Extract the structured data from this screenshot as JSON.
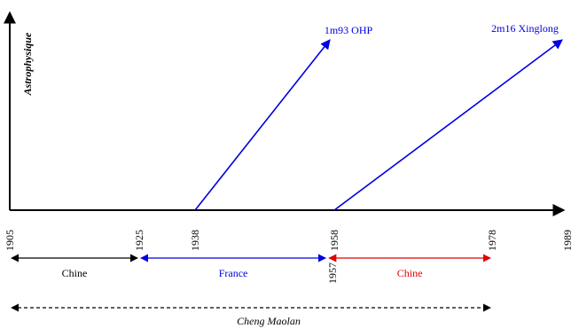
{
  "axes": {
    "y_label": "Astrophysique",
    "years": [
      {
        "year": "1905"
      },
      {
        "year": "1925"
      },
      {
        "year": "1938"
      },
      {
        "year": "1958"
      },
      {
        "year": "1978"
      },
      {
        "year": "1989"
      }
    ],
    "year_1957": "1957"
  },
  "telescopes": [
    {
      "label": "1m93 OHP",
      "from_year": 1938,
      "to_year": 1958,
      "color": "#0000e0"
    },
    {
      "label": "2m16 Xinglong",
      "from_year": 1958,
      "to_year": 1989,
      "color": "#0000e0"
    }
  ],
  "periods": [
    {
      "label": "Chine",
      "from_year": 1905,
      "to_year": 1925,
      "color": "#000000"
    },
    {
      "label": "France",
      "from_year": 1925,
      "to_year": 1957,
      "color": "#0000e0"
    },
    {
      "label": "Chine",
      "from_year": 1957,
      "to_year": 1978,
      "color": "#e00000"
    }
  ],
  "life": {
    "label": "Cheng Maolan",
    "from_year": 1905,
    "to_year": 1978,
    "color": "#000000"
  }
}
